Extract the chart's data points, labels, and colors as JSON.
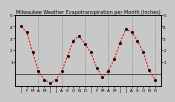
{
  "title": "Milwaukee Weather Evapotranspiration per Month (Inches)",
  "x": [
    1,
    2,
    3,
    4,
    5,
    6,
    7,
    8,
    9,
    10,
    11,
    12,
    13,
    14,
    15,
    16,
    17,
    18,
    19,
    20,
    21,
    22,
    23,
    24
  ],
  "y": [
    4.0,
    3.5,
    1.8,
    0.2,
    -0.5,
    -0.8,
    -0.5,
    0.2,
    1.5,
    2.8,
    3.2,
    2.5,
    1.8,
    0.5,
    -0.3,
    0.2,
    1.2,
    2.6,
    3.8,
    3.5,
    2.8,
    1.8,
    0.3,
    -0.5
  ],
  "ylim": [
    -1,
    5
  ],
  "yticks": [
    1,
    2,
    3,
    4,
    5
  ],
  "xlim": [
    0,
    25
  ],
  "line_color": "#ff0000",
  "marker_color": "#000000",
  "bg_color": "#c8c8c8",
  "plot_bg": "#c8c8c8",
  "grid_color": "#888888",
  "title_fontsize": 3.5,
  "tick_fontsize": 3.0,
  "vgrid_positions": [
    4,
    8,
    12,
    16,
    20,
    24
  ]
}
